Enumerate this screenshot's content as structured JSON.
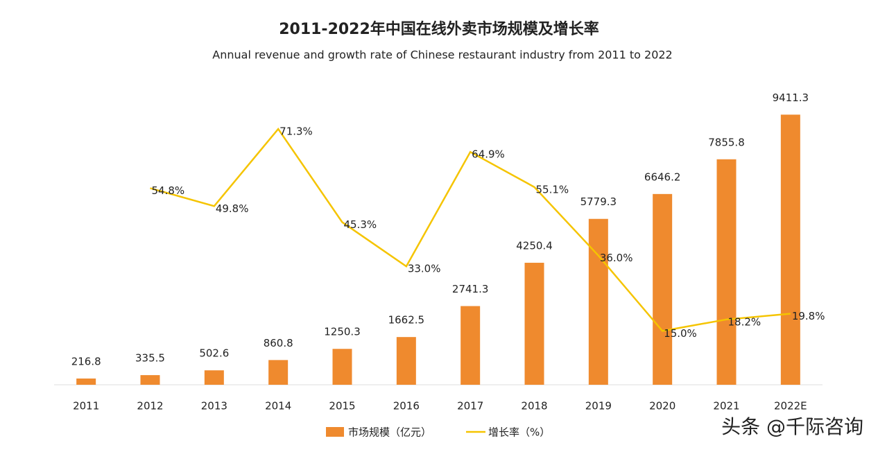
{
  "chart_data": {
    "type": "bar-line",
    "title": "2011-2022年中国在线外卖市场规模及增长率",
    "subtitle": "Annual revenue and growth rate of Chinese restaurant industry from 2011 to 2022",
    "categories": [
      "2011",
      "2012",
      "2013",
      "2014",
      "2015",
      "2016",
      "2017",
      "2018",
      "2019",
      "2020",
      "2021",
      "2022E"
    ],
    "series": [
      {
        "name": "市场规模（亿元）",
        "type": "bar",
        "color": "#ef8a2e",
        "values": [
          216.8,
          335.5,
          502.6,
          860.8,
          1250.3,
          1662.5,
          2741.3,
          4250.4,
          5779.3,
          6646.2,
          7855.8,
          9411.3
        ]
      },
      {
        "name": "增长率（%）",
        "type": "line",
        "axis": "y2",
        "color": "#f5c400",
        "values": [
          null,
          54.8,
          49.8,
          71.3,
          45.3,
          33.0,
          64.9,
          55.1,
          36.0,
          15.0,
          18.2,
          19.8
        ],
        "value_labels": [
          null,
          "54.8%",
          "49.8%",
          "71.3%",
          "45.3%",
          "33.0%",
          "64.9%",
          "55.1%",
          "36.0%",
          "15.0%",
          "18.2%",
          "19.8%"
        ]
      }
    ],
    "ylim": [
      0,
      10000
    ],
    "y2lim": [
      0,
      80
    ],
    "watermark": "头条 @千际咨询"
  }
}
